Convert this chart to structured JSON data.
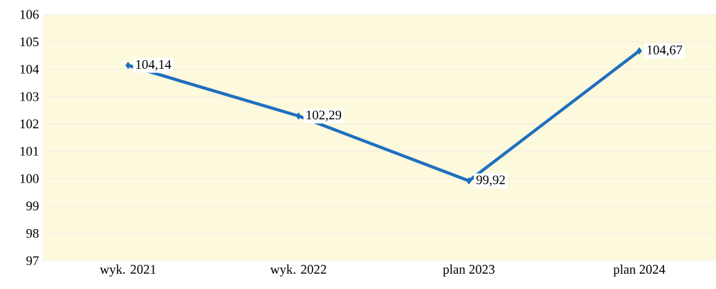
{
  "chart_data": {
    "type": "line",
    "categories": [
      "wyk. 2021",
      "wyk. 2022",
      "plan 2023",
      "plan 2024"
    ],
    "series": [
      {
        "color": "#1f6fbf",
        "values": [
          104.14,
          102.29,
          99.92,
          104.67
        ],
        "value_labels": [
          "104,14",
          "102,29",
          "99,92",
          "104,67"
        ]
      }
    ],
    "ylim": [
      97,
      106
    ],
    "yticks": [
      97,
      98,
      99,
      100,
      101,
      102,
      103,
      104,
      105,
      106
    ],
    "grid": "y",
    "marker": "diamond",
    "line_style": "solid"
  }
}
